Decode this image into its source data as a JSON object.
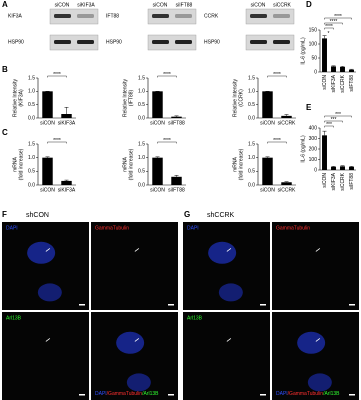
{
  "panel_labels": [
    "A",
    "B",
    "C",
    "D",
    "E",
    "F",
    "G"
  ],
  "blots": [
    {
      "protein": "KIF3A",
      "control": "HSP90",
      "lanes": [
        "siCON",
        "siKIF3A"
      ]
    },
    {
      "protein": "IFT88",
      "control": "HSP90",
      "lanes": [
        "siCON",
        "siIFT88"
      ]
    },
    {
      "protein": "CCRK",
      "control": "HSP90",
      "lanes": [
        "siCON",
        "siCCRK"
      ]
    }
  ],
  "chart_data": [
    {
      "type": "bar",
      "ylabel": [
        "Relative Intensity",
        "(KIF3A)"
      ],
      "categories": [
        "siCON",
        "siKIF3A"
      ],
      "values": [
        1.0,
        0.15
      ],
      "errors": [
        0,
        0.25
      ],
      "color": "#000000",
      "ylim": [
        0,
        1.5
      ],
      "yticks": [
        {
          "value": 0,
          "label": "0.0"
        },
        {
          "value": 0.5,
          "label": "0.5"
        },
        {
          "value": 1,
          "label": "1.0"
        },
        {
          "value": 1.5,
          "label": "1.5"
        }
      ],
      "significance": [
        "****"
      ]
    },
    {
      "type": "bar",
      "ylabel": [
        "Relative Intensity",
        "(IFT88)"
      ],
      "categories": [
        "siCON",
        "siIFT88"
      ],
      "values": [
        1.0,
        0.05
      ],
      "errors": [
        0,
        0.03
      ],
      "color": "#000000",
      "ylim": [
        0,
        1.5
      ],
      "yticks": [
        {
          "value": 0,
          "label": "0.0"
        },
        {
          "value": 0.5,
          "label": "0.5"
        },
        {
          "value": 1,
          "label": "1.0"
        },
        {
          "value": 1.5,
          "label": "1.5"
        }
      ],
      "significance": [
        "****"
      ]
    },
    {
      "type": "bar",
      "ylabel": [
        "Relative Intensity",
        "(CCRK)"
      ],
      "categories": [
        "siCON",
        "siCCRK"
      ],
      "values": [
        1.0,
        0.08
      ],
      "errors": [
        0,
        0.05
      ],
      "color": "#000000",
      "ylim": [
        0,
        1.5
      ],
      "yticks": [
        {
          "value": 0,
          "label": "0.0"
        },
        {
          "value": 0.5,
          "label": "0.5"
        },
        {
          "value": 1,
          "label": "1.0"
        },
        {
          "value": 1.5,
          "label": "1.5"
        }
      ],
      "significance": [
        "****"
      ]
    },
    {
      "type": "bar",
      "ylabel": [
        "mRNA",
        "(fold increase)"
      ],
      "categories": [
        "siCON",
        "siKIF3A"
      ],
      "values": [
        1.0,
        0.15
      ],
      "errors": [
        0.03,
        0.03
      ],
      "color": "#000000",
      "ylim": [
        0,
        1.5
      ],
      "yticks": [
        {
          "value": 0,
          "label": "0.0"
        },
        {
          "value": 0.5,
          "label": "0.5"
        },
        {
          "value": 1,
          "label": "1.0"
        },
        {
          "value": 1.5,
          "label": "1.5"
        }
      ],
      "significance": [
        "****"
      ]
    },
    {
      "type": "bar",
      "ylabel": [
        "mRNA",
        "(fold increase)"
      ],
      "categories": [
        "siCON",
        "siIFT88"
      ],
      "values": [
        1.0,
        0.3
      ],
      "errors": [
        0.03,
        0.05
      ],
      "color": "#000000",
      "ylim": [
        0,
        1.5
      ],
      "yticks": [
        {
          "value": 0,
          "label": "0.0"
        },
        {
          "value": 0.5,
          "label": "0.5"
        },
        {
          "value": 1,
          "label": "1.0"
        },
        {
          "value": 1.5,
          "label": "1.5"
        }
      ],
      "significance": [
        "****"
      ]
    },
    {
      "type": "bar",
      "ylabel": [
        "mRNA",
        "(fold increase)"
      ],
      "categories": [
        "siCON",
        "siCCRK"
      ],
      "values": [
        1.0,
        0.1
      ],
      "errors": [
        0.03,
        0.02
      ],
      "color": "#000000",
      "ylim": [
        0,
        1.5
      ],
      "yticks": [
        {
          "value": 0,
          "label": "0.0"
        },
        {
          "value": 0.5,
          "label": "0.5"
        },
        {
          "value": 1,
          "label": "1.0"
        },
        {
          "value": 1.5,
          "label": "1.5"
        }
      ],
      "significance": [
        "****"
      ]
    },
    {
      "type": "bar",
      "ylabel": [
        "IL-6 (pg/mL)"
      ],
      "categories": [
        "siCON",
        "siKIF3A",
        "siCCRK",
        "siIFT88"
      ],
      "values": [
        120,
        20,
        18,
        8
      ],
      "errors": [
        10,
        2,
        2,
        2
      ],
      "color": "#000000",
      "ylim": [
        0,
        150
      ],
      "yticks": [
        0,
        50,
        100,
        150
      ],
      "significance": [
        "****",
        "****",
        "****"
      ],
      "annotation": "*"
    },
    {
      "type": "bar",
      "ylabel": [
        "IL-6 (pg/mL)"
      ],
      "categories": [
        "siCON",
        "siKIF3A",
        "siCCRK",
        "siIFT88"
      ],
      "values": [
        330,
        30,
        35,
        30
      ],
      "errors": [
        40,
        5,
        6,
        5
      ],
      "color": "#000000",
      "ylim": [
        0,
        400
      ],
      "yticks": [
        0,
        100,
        200,
        300,
        400
      ],
      "significance": [
        "***",
        "***",
        "***"
      ]
    }
  ],
  "microscopy": [
    {
      "title": "shCON",
      "channels": [
        "DAPI",
        "GammaTubulin",
        "Arl13B"
      ],
      "merge": [
        "DAPI",
        "/GammaTubulin",
        "/Arl13B"
      ]
    },
    {
      "title": "shCCRK",
      "channels": [
        "DAPI",
        "GammaTubulin",
        "Arl13B"
      ],
      "merge": [
        "DAPI",
        "/GammaTubulin",
        "/Arl13B"
      ]
    }
  ]
}
